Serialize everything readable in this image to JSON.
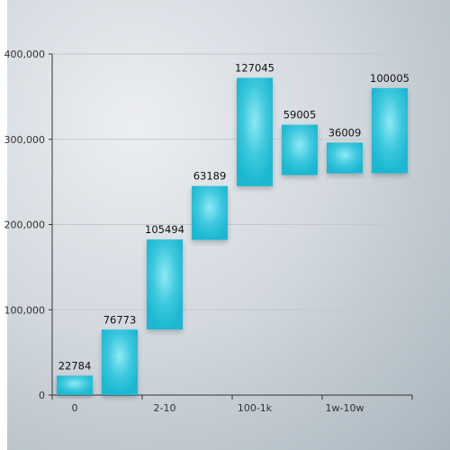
{
  "chart_data": {
    "type": "bar",
    "subtype": "floating-waterfall",
    "title": "",
    "xlabel": "",
    "ylabel": "",
    "ylim": [
      0,
      400000
    ],
    "y_ticks": [
      0,
      100000,
      200000,
      300000,
      400000
    ],
    "y_tick_labels": [
      "0",
      "100,000",
      "200,000",
      "300,000",
      "400,000"
    ],
    "x_tick_labels": [
      "0",
      "2-10",
      "100-1k",
      "1w-10w"
    ],
    "grid": true,
    "legend": "none",
    "bar_color": "#1fbcd6",
    "bars": [
      {
        "base": 0,
        "value": 22784,
        "label": "22784"
      },
      {
        "base": 0,
        "value": 76773,
        "label": "76773"
      },
      {
        "base": 77000,
        "value": 105494,
        "label": "105494"
      },
      {
        "base": 182000,
        "value": 63189,
        "label": "63189"
      },
      {
        "base": 245000,
        "value": 127045,
        "label": "127045"
      },
      {
        "base": 258000,
        "value": 59005,
        "label": "59005"
      },
      {
        "base": 260000,
        "value": 36009,
        "label": "36009"
      },
      {
        "base": 260000,
        "value": 100005,
        "label": "100005"
      }
    ]
  }
}
